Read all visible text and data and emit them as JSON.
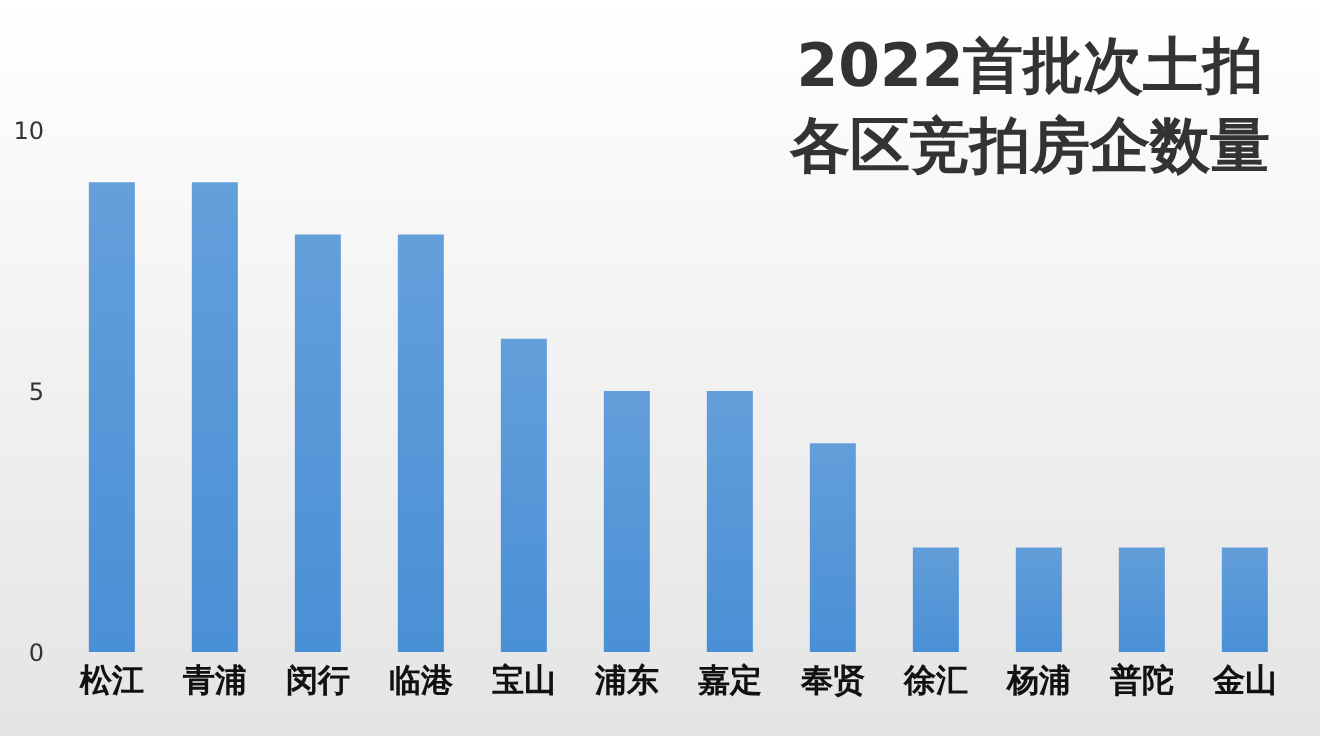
{
  "chart_data": {
    "type": "bar",
    "title": "2022首批次土拍各区竞拍房企数量",
    "categories": [
      "松江",
      "青浦",
      "闵行",
      "临港",
      "宝山",
      "浦东",
      "嘉定",
      "奉贤",
      "徐汇",
      "杨浦",
      "普陀",
      "金山"
    ],
    "values": [
      9,
      9,
      8,
      8,
      6,
      5,
      5,
      4,
      2,
      2,
      2,
      2
    ],
    "color": "#4a90d6",
    "ylim": [
      0,
      10
    ],
    "yticks": [
      0,
      5,
      10
    ],
    "grid": false,
    "legend": false
  }
}
